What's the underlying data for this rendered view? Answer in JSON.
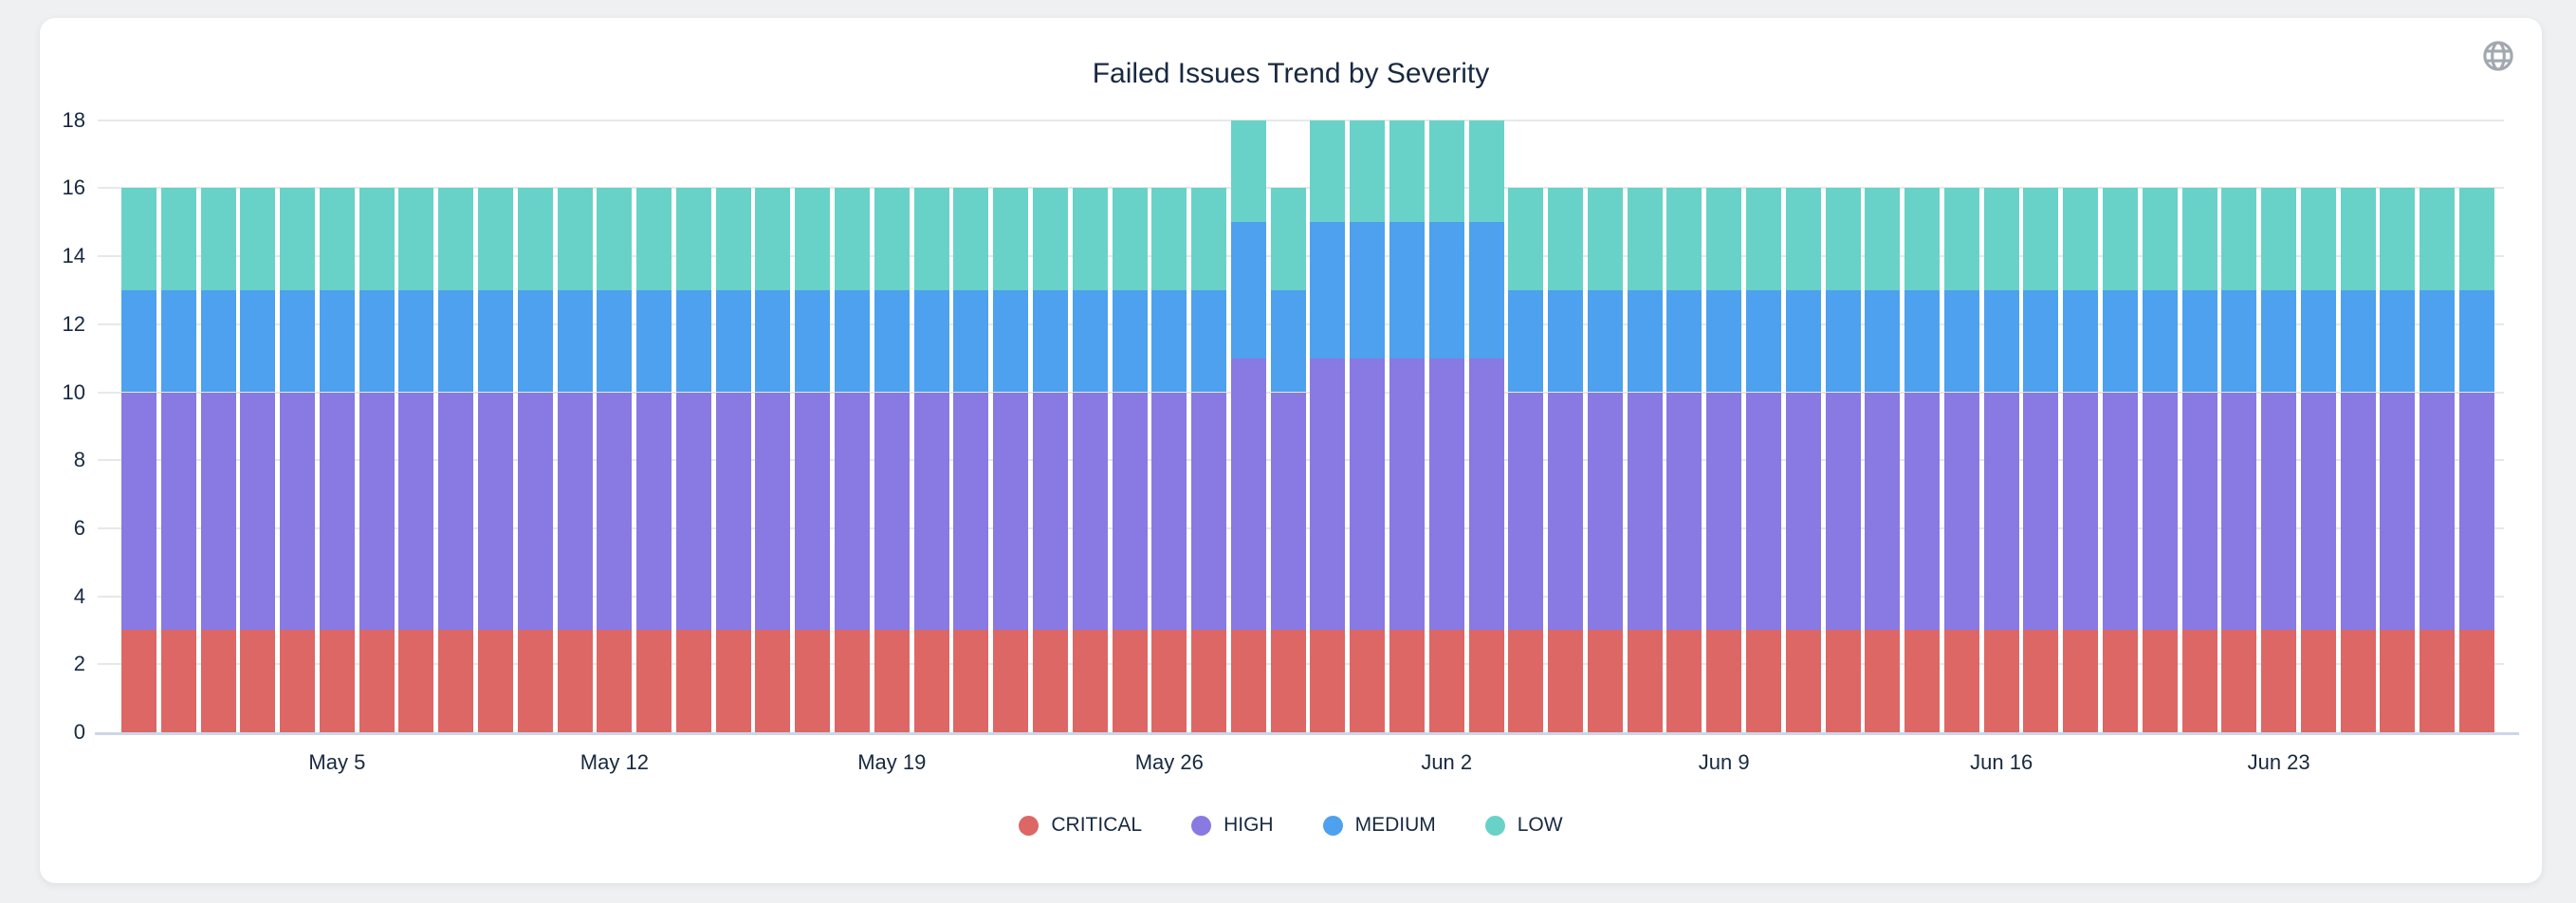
{
  "header": {
    "title": "Failed Issues Trend by Severity",
    "icon": "globe-icon"
  },
  "colors": {
    "page_bg": "#eef0f2",
    "card_bg": "#ffffff",
    "text": "#182940",
    "gridline": "#e7e8ea",
    "axis_line": "#ccd6e6",
    "icon_gray": "#a2a8b0",
    "critical": "#dd6765",
    "high": "#8979e2",
    "medium": "#4da1ee",
    "low": "#68d2c8"
  },
  "chart_data": {
    "type": "bar",
    "stacked": true,
    "title": "Failed Issues Trend by Severity",
    "xlabel": "",
    "ylabel": "",
    "ylim": [
      0,
      18
    ],
    "y_ticks": [
      0,
      2,
      4,
      6,
      8,
      10,
      12,
      14,
      16,
      18
    ],
    "grid": true,
    "legend_position": "bottom",
    "x_tick_labels": [
      "May 5",
      "May 12",
      "May 19",
      "May 26",
      "Jun 2",
      "Jun 9",
      "Jun 16",
      "Jun 23"
    ],
    "x_dates": [
      "Apr 30",
      "May 1",
      "May 2",
      "May 3",
      "May 4",
      "May 5",
      "May 6",
      "May 7",
      "May 8",
      "May 9",
      "May 10",
      "May 11",
      "May 12",
      "May 13",
      "May 14",
      "May 15",
      "May 16",
      "May 17",
      "May 18",
      "May 19",
      "May 20",
      "May 21",
      "May 22",
      "May 23",
      "May 24",
      "May 25",
      "May 26",
      "May 27",
      "May 28",
      "May 29",
      "May 30",
      "May 31",
      "Jun 1",
      "Jun 2",
      "Jun 3",
      "Jun 4",
      "Jun 5",
      "Jun 6",
      "Jun 7",
      "Jun 8",
      "Jun 9",
      "Jun 10",
      "Jun 11",
      "Jun 12",
      "Jun 13",
      "Jun 14",
      "Jun 15",
      "Jun 16",
      "Jun 17",
      "Jun 18",
      "Jun 19",
      "Jun 20",
      "Jun 21",
      "Jun 22",
      "Jun 23",
      "Jun 24",
      "Jun 25",
      "Jun 26",
      "Jun 27",
      "Jun 28"
    ],
    "series": [
      {
        "name": "CRITICAL",
        "color": "#dd6765",
        "values": [
          3,
          3,
          3,
          3,
          3,
          3,
          3,
          3,
          3,
          3,
          3,
          3,
          3,
          3,
          3,
          3,
          3,
          3,
          3,
          3,
          3,
          3,
          3,
          3,
          3,
          3,
          3,
          3,
          3,
          3,
          3,
          3,
          3,
          3,
          3,
          3,
          3,
          3,
          3,
          3,
          3,
          3,
          3,
          3,
          3,
          3,
          3,
          3,
          3,
          3,
          3,
          3,
          3,
          3,
          3,
          3,
          3,
          3,
          3,
          3
        ]
      },
      {
        "name": "HIGH",
        "color": "#8979e2",
        "values": [
          7,
          7,
          7,
          7,
          7,
          7,
          7,
          7,
          7,
          7,
          7,
          7,
          7,
          7,
          7,
          7,
          7,
          7,
          7,
          7,
          7,
          7,
          7,
          7,
          7,
          7,
          7,
          7,
          8,
          7,
          8,
          8,
          8,
          8,
          8,
          7,
          7,
          7,
          7,
          7,
          7,
          7,
          7,
          7,
          7,
          7,
          7,
          7,
          7,
          7,
          7,
          7,
          7,
          7,
          7,
          7,
          7,
          7,
          7,
          7
        ]
      },
      {
        "name": "MEDIUM",
        "color": "#4da1ee",
        "values": [
          3,
          3,
          3,
          3,
          3,
          3,
          3,
          3,
          3,
          3,
          3,
          3,
          3,
          3,
          3,
          3,
          3,
          3,
          3,
          3,
          3,
          3,
          3,
          3,
          3,
          3,
          3,
          3,
          4,
          3,
          4,
          4,
          4,
          4,
          4,
          3,
          3,
          3,
          3,
          3,
          3,
          3,
          3,
          3,
          3,
          3,
          3,
          3,
          3,
          3,
          3,
          3,
          3,
          3,
          3,
          3,
          3,
          3,
          3,
          3
        ]
      },
      {
        "name": "LOW",
        "color": "#68d2c8",
        "values": [
          3,
          3,
          3,
          3,
          3,
          3,
          3,
          3,
          3,
          3,
          3,
          3,
          3,
          3,
          3,
          3,
          3,
          3,
          3,
          3,
          3,
          3,
          3,
          3,
          3,
          3,
          3,
          3,
          3,
          3,
          3,
          3,
          3,
          3,
          3,
          3,
          3,
          3,
          3,
          3,
          3,
          3,
          3,
          3,
          3,
          3,
          3,
          3,
          3,
          3,
          3,
          3,
          3,
          3,
          3,
          3,
          3,
          3,
          3,
          3
        ]
      }
    ]
  }
}
